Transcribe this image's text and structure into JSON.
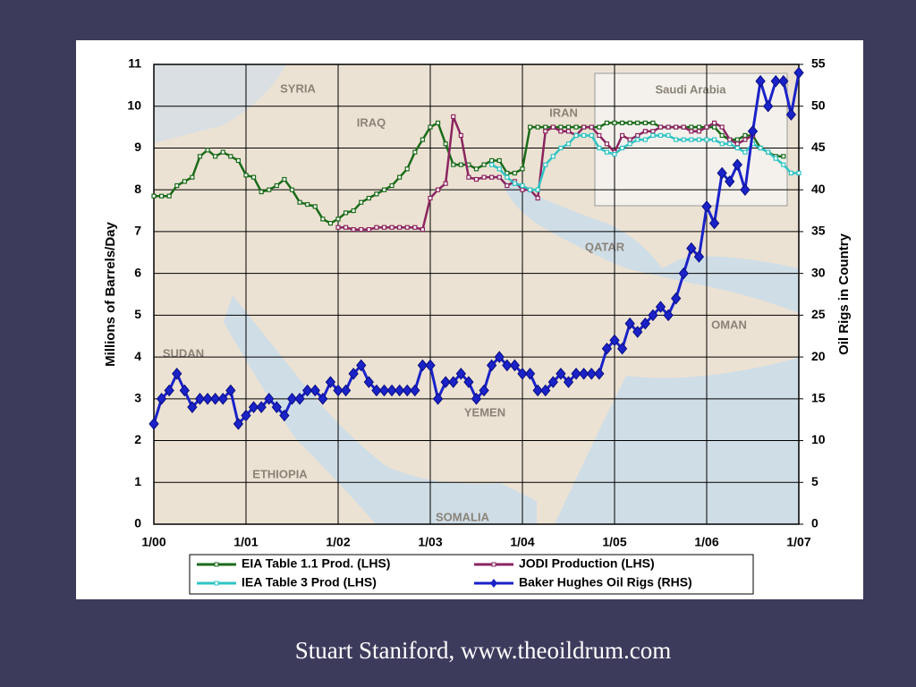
{
  "chart_data": {
    "type": "line",
    "y_label": "Millions of Barrels/Day",
    "y2_label": "Oil Rigs in Country",
    "x": [
      0,
      1,
      2,
      3,
      4,
      5,
      6,
      7,
      8,
      9,
      10,
      11,
      12,
      13,
      14,
      15,
      16,
      17,
      18,
      19,
      20,
      21,
      22,
      23,
      24,
      25,
      26,
      27,
      28,
      29,
      30,
      31,
      32,
      33,
      34,
      35,
      36,
      37,
      38,
      39,
      40,
      41,
      42,
      43,
      44,
      45,
      46,
      47,
      48,
      49,
      50,
      51,
      52,
      53,
      54,
      55,
      56,
      57,
      58,
      59,
      60,
      61,
      62,
      63,
      64,
      65,
      66,
      67,
      68,
      69,
      70,
      71,
      72,
      73,
      74,
      75,
      76,
      77,
      78,
      79,
      80,
      81,
      82,
      83,
      84
    ],
    "xlim": [
      0,
      84
    ],
    "xticks": [
      {
        "value": 0,
        "label": "1/00"
      },
      {
        "value": 12,
        "label": "1/01"
      },
      {
        "value": 24,
        "label": "1/02"
      },
      {
        "value": 36,
        "label": "1/03"
      },
      {
        "value": 48,
        "label": "1/04"
      },
      {
        "value": 60,
        "label": "1/05"
      },
      {
        "value": 72,
        "label": "1/06"
      },
      {
        "value": 84,
        "label": "1/07"
      }
    ],
    "ylim": [
      0,
      11
    ],
    "yticks": [
      0,
      1,
      2,
      3,
      4,
      5,
      6,
      7,
      8,
      9,
      10,
      11
    ],
    "y2lim": [
      0,
      55
    ],
    "y2ticks": [
      0,
      5,
      10,
      15,
      20,
      25,
      30,
      35,
      40,
      45,
      50,
      55
    ],
    "grid": true,
    "series": [
      {
        "name": "EIA Table 1.1 Prod. (LHS)",
        "color": "#1a6b1a",
        "marker": "square",
        "values": [
          7.85,
          7.85,
          7.85,
          8.1,
          8.2,
          8.3,
          8.8,
          8.95,
          8.8,
          8.9,
          8.8,
          8.7,
          8.35,
          8.3,
          7.95,
          8.0,
          8.1,
          8.25,
          8.0,
          7.7,
          7.65,
          7.6,
          7.3,
          7.2,
          7.3,
          7.45,
          7.5,
          7.7,
          7.8,
          7.9,
          8.0,
          8.1,
          8.3,
          8.5,
          8.9,
          9.2,
          9.5,
          9.6,
          9.1,
          8.6,
          8.6,
          8.6,
          8.5,
          8.6,
          8.7,
          8.7,
          8.4,
          8.4,
          8.5,
          9.5,
          9.5,
          9.5,
          9.5,
          9.5,
          9.5,
          9.5,
          9.5,
          9.5,
          9.5,
          9.6,
          9.6,
          9.6,
          9.6,
          9.6,
          9.6,
          9.6,
          9.5,
          9.5,
          9.5,
          9.5,
          9.5,
          9.5,
          9.5,
          9.5,
          9.3,
          9.2,
          9.2,
          9.3,
          9.3,
          9.0,
          8.9,
          8.8,
          8.8,
          null,
          null
        ]
      },
      {
        "name": "JODI Production (LHS)",
        "color": "#8b2560",
        "marker": "square",
        "values": [
          null,
          null,
          null,
          null,
          null,
          null,
          null,
          null,
          null,
          null,
          null,
          null,
          null,
          null,
          null,
          null,
          null,
          null,
          null,
          null,
          null,
          null,
          null,
          null,
          7.1,
          7.1,
          7.05,
          7.05,
          7.05,
          7.1,
          7.1,
          7.1,
          7.1,
          7.1,
          7.1,
          7.05,
          7.8,
          8.0,
          8.15,
          9.75,
          9.3,
          8.3,
          8.25,
          8.3,
          8.3,
          8.3,
          8.1,
          8.2,
          8.0,
          8.0,
          7.8,
          9.4,
          9.5,
          9.4,
          9.4,
          9.3,
          9.5,
          9.5,
          9.3,
          9.1,
          8.9,
          9.3,
          9.2,
          9.3,
          9.4,
          9.4,
          9.5,
          9.5,
          9.5,
          9.5,
          9.4,
          9.4,
          9.5,
          9.6,
          9.5,
          9.2,
          9.1,
          9.2,
          9.3,
          null,
          null,
          null,
          null,
          null,
          null
        ]
      },
      {
        "name": "IEA Table 3 Prod (LHS)",
        "color": "#2ec4c4",
        "marker": "square",
        "values": [
          null,
          null,
          null,
          null,
          null,
          null,
          null,
          null,
          null,
          null,
          null,
          null,
          null,
          null,
          null,
          null,
          null,
          null,
          null,
          null,
          null,
          null,
          null,
          null,
          null,
          null,
          null,
          null,
          null,
          null,
          null,
          null,
          null,
          null,
          null,
          null,
          null,
          null,
          null,
          null,
          null,
          null,
          null,
          null,
          8.6,
          8.5,
          8.3,
          8.15,
          8.1,
          8.0,
          8.0,
          8.6,
          8.8,
          9.0,
          9.1,
          9.3,
          9.3,
          9.3,
          9.0,
          8.9,
          8.85,
          9.0,
          9.1,
          9.2,
          9.2,
          9.3,
          9.3,
          9.3,
          9.2,
          9.2,
          9.2,
          9.2,
          9.2,
          9.2,
          9.1,
          9.1,
          9.0,
          8.9,
          9.1,
          9.0,
          8.9,
          8.75,
          8.6,
          8.4,
          8.4
        ]
      },
      {
        "name": "Baker Hughes Oil Rigs (RHS)",
        "color": "#1a22c8",
        "marker": "diamond",
        "axis": "y2",
        "values": [
          12,
          15,
          16,
          18,
          16,
          14,
          15,
          15,
          15,
          15,
          16,
          12,
          13,
          14,
          14,
          15,
          14,
          13,
          15,
          15,
          16,
          16,
          15,
          17,
          16,
          16,
          18,
          19,
          17,
          16,
          16,
          16,
          16,
          16,
          16,
          19,
          19,
          15,
          17,
          17,
          18,
          17,
          15,
          16,
          19,
          20,
          19,
          19,
          18,
          18,
          16,
          16,
          17,
          18,
          17,
          18,
          18,
          18,
          18,
          21,
          22,
          21,
          24,
          23,
          24,
          25,
          26,
          25,
          27,
          30,
          33,
          32,
          38,
          36,
          42,
          41,
          43,
          40,
          47,
          53,
          50,
          53,
          53,
          49,
          54
        ]
      }
    ]
  },
  "map": {
    "labels": [
      "Saudi Arabia",
      "SYRIA",
      "IRAQ",
      "IRAN",
      "QATAR",
      "OMAN",
      "SUDAN",
      "YEMEN",
      "ETHIOPIA",
      "SOMALIA"
    ]
  },
  "credit": "Stuart Staniford, www.theoildrum.com"
}
